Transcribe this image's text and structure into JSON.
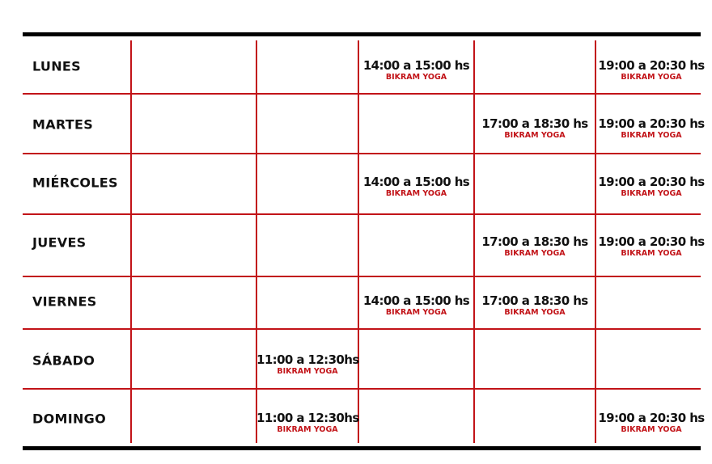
{
  "colors": {
    "accent": "#c21318",
    "text": "#111111",
    "border": "#000000"
  },
  "schedule": {
    "rows": [
      {
        "day": "LUNES",
        "cells": [
          null,
          null,
          {
            "time": "14:00 a 15:00 hs",
            "class": "BIKRAM YOGA"
          },
          null,
          {
            "time": "19:00 a 20:30 hs",
            "class": "BIKRAM YOGA"
          }
        ]
      },
      {
        "day": "MARTES",
        "cells": [
          null,
          null,
          null,
          {
            "time": "17:00 a 18:30 hs",
            "class": "BIKRAM YOGA"
          },
          {
            "time": "19:00 a 20:30 hs",
            "class": "BIKRAM YOGA"
          }
        ]
      },
      {
        "day": "MIÉRCOLES",
        "cells": [
          null,
          null,
          {
            "time": "14:00 a 15:00 hs",
            "class": "BIKRAM YOGA"
          },
          null,
          {
            "time": "19:00 a 20:30 hs",
            "class": "BIKRAM YOGA"
          }
        ]
      },
      {
        "day": "JUEVES",
        "cells": [
          null,
          null,
          null,
          {
            "time": "17:00 a 18:30 hs",
            "class": "BIKRAM YOGA"
          },
          {
            "time": "19:00 a 20:30 hs",
            "class": "BIKRAM YOGA"
          }
        ]
      },
      {
        "day": "VIERNES",
        "cells": [
          null,
          null,
          {
            "time": "14:00 a 15:00 hs",
            "class": "BIKRAM YOGA"
          },
          {
            "time": "17:00 a 18:30 hs",
            "class": "BIKRAM YOGA"
          },
          null
        ]
      },
      {
        "day": "SÁBADO",
        "cells": [
          null,
          {
            "time": "11:00 a 12:30hs",
            "class": "BIKRAM YOGA"
          },
          null,
          null,
          null
        ]
      },
      {
        "day": "DOMINGO",
        "cells": [
          null,
          {
            "time": "11:00 a 12:30hs",
            "class": "BIKRAM YOGA"
          },
          null,
          null,
          {
            "time": "19:00 a 20:30 hs",
            "class": "BIKRAM YOGA"
          }
        ]
      }
    ]
  }
}
